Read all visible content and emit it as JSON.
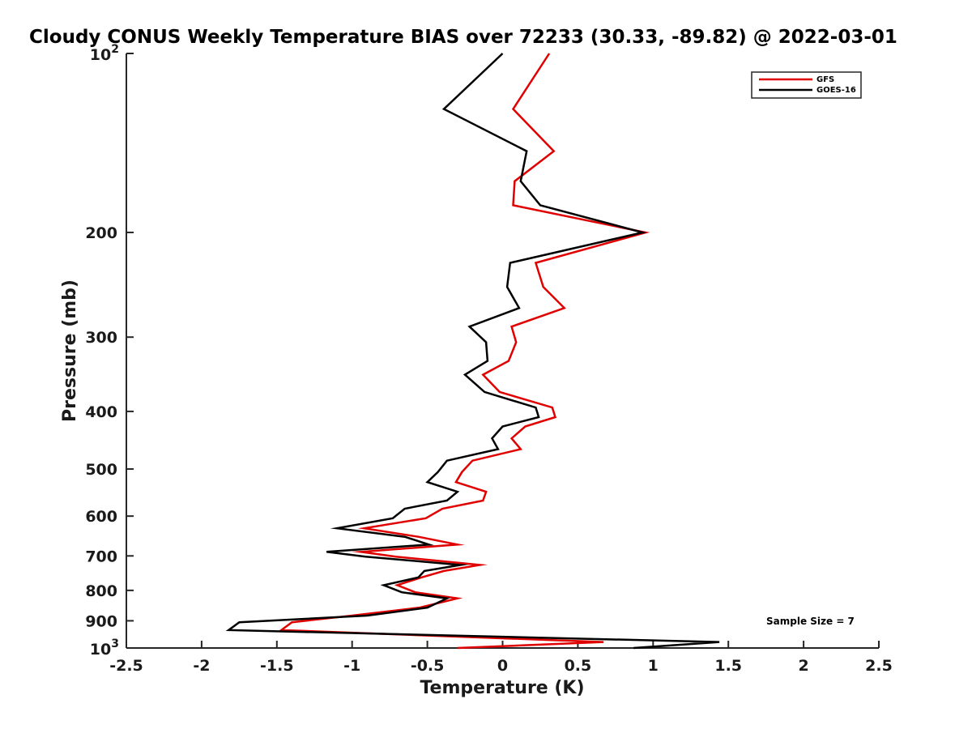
{
  "chart_data": {
    "type": "line",
    "title": "Cloudy CONUS Weekly Temperature BIAS over 72233 (30.33, -89.82) @ 2022-03-01",
    "xlabel": "Temperature (K)",
    "ylabel": "Pressure (mb)",
    "xlim": [
      -2.5,
      2.5
    ],
    "ylim": [
      100,
      1000
    ],
    "yscale": "log",
    "y_reversed": true,
    "x_ticks": [
      "-2.5",
      "-2",
      "-1.5",
      "-1",
      "-0.5",
      "0",
      "0.5",
      "1",
      "1.5",
      "2",
      "2.5"
    ],
    "y_ticks": [
      {
        "value": 100,
        "base": "10",
        "exp": "2"
      },
      {
        "value": 200,
        "label": "200"
      },
      {
        "value": 300,
        "label": "300"
      },
      {
        "value": 400,
        "label": "400"
      },
      {
        "value": 500,
        "label": "500"
      },
      {
        "value": 600,
        "label": "600"
      },
      {
        "value": 700,
        "label": "700"
      },
      {
        "value": 800,
        "label": "800"
      },
      {
        "value": 900,
        "label": "900"
      },
      {
        "value": 1000,
        "base": "10",
        "exp": "3"
      }
    ],
    "legend_location": "top-right",
    "annotation": "Sample Size = 7",
    "series": [
      {
        "name": "GFS",
        "color": "#e00000",
        "points": [
          [
            0.31,
            100
          ],
          [
            0.07,
            124
          ],
          [
            0.34,
            146
          ],
          [
            0.08,
            164
          ],
          [
            0.07,
            180
          ],
          [
            0.95,
            200
          ],
          [
            0.22,
            225
          ],
          [
            0.27,
            247
          ],
          [
            0.41,
            268
          ],
          [
            0.06,
            288
          ],
          [
            0.09,
            306
          ],
          [
            0.04,
            329
          ],
          [
            -0.13,
            347
          ],
          [
            -0.02,
            371
          ],
          [
            0.33,
            394
          ],
          [
            0.35,
            409
          ],
          [
            0.15,
            424
          ],
          [
            0.06,
            444
          ],
          [
            0.12,
            463
          ],
          [
            -0.2,
            484
          ],
          [
            -0.27,
            506
          ],
          [
            -0.31,
            526
          ],
          [
            -0.11,
            546
          ],
          [
            -0.13,
            565
          ],
          [
            -0.4,
            583
          ],
          [
            -0.51,
            605
          ],
          [
            -0.92,
            629
          ],
          [
            -0.56,
            650
          ],
          [
            -0.3,
            670
          ],
          [
            -0.94,
            689
          ],
          [
            -0.71,
            702
          ],
          [
            -0.15,
            725
          ],
          [
            -0.39,
            742
          ],
          [
            -0.54,
            761
          ],
          [
            -0.7,
            784
          ],
          [
            -0.58,
            806
          ],
          [
            -0.3,
            825
          ],
          [
            -0.55,
            855
          ],
          [
            -1.0,
            882
          ],
          [
            -1.4,
            905
          ],
          [
            -1.47,
            933
          ],
          [
            0.67,
            977
          ],
          [
            -0.3,
            1000
          ]
        ]
      },
      {
        "name": "GOES-16",
        "color": "#000000",
        "points": [
          [
            0.0,
            100
          ],
          [
            -0.39,
            124
          ],
          [
            0.16,
            146
          ],
          [
            0.12,
            164
          ],
          [
            0.25,
            180
          ],
          [
            0.93,
            200
          ],
          [
            0.05,
            225
          ],
          [
            0.03,
            247
          ],
          [
            0.11,
            268
          ],
          [
            -0.22,
            288
          ],
          [
            -0.11,
            306
          ],
          [
            -0.1,
            329
          ],
          [
            -0.25,
            347
          ],
          [
            -0.12,
            371
          ],
          [
            0.22,
            394
          ],
          [
            0.24,
            409
          ],
          [
            0.0,
            424
          ],
          [
            -0.07,
            444
          ],
          [
            -0.03,
            463
          ],
          [
            -0.37,
            484
          ],
          [
            -0.43,
            506
          ],
          [
            -0.5,
            526
          ],
          [
            -0.3,
            546
          ],
          [
            -0.37,
            565
          ],
          [
            -0.65,
            583
          ],
          [
            -0.73,
            605
          ],
          [
            -1.1,
            629
          ],
          [
            -0.65,
            650
          ],
          [
            -0.49,
            670
          ],
          [
            -1.17,
            689
          ],
          [
            -0.91,
            702
          ],
          [
            -0.28,
            725
          ],
          [
            -0.52,
            742
          ],
          [
            -0.56,
            761
          ],
          [
            -0.79,
            784
          ],
          [
            -0.67,
            806
          ],
          [
            -0.37,
            825
          ],
          [
            -0.5,
            855
          ],
          [
            -0.9,
            882
          ],
          [
            -1.75,
            905
          ],
          [
            -1.82,
            933
          ],
          [
            1.44,
            977
          ],
          [
            0.87,
            1000
          ]
        ]
      }
    ]
  }
}
